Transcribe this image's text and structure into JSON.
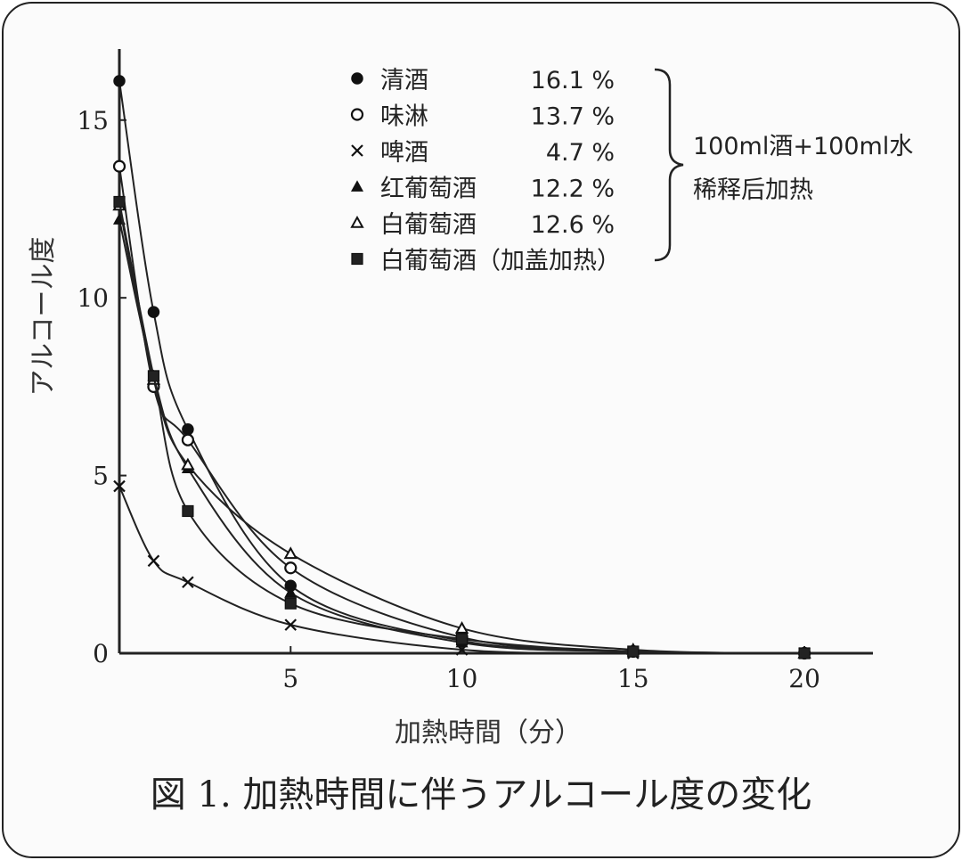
{
  "chart_data": {
    "type": "line",
    "title": "図 1. 加熱時間に伴うアルコール度の変化",
    "xlabel": "加熱時間（分）",
    "ylabel": "アルコール度",
    "xlim": [
      0,
      22
    ],
    "ylim": [
      0,
      17
    ],
    "xticks": [
      5,
      10,
      15,
      20
    ],
    "yticks": [
      0,
      5,
      10,
      15
    ],
    "grid": false,
    "legend_position": "top-right",
    "series": [
      {
        "name": "清酒",
        "pct": "16.1 %",
        "marker": "filled-circle",
        "x": [
          0,
          1,
          2,
          5,
          10,
          15,
          20
        ],
        "y": [
          16.1,
          9.6,
          6.3,
          1.9,
          0.35,
          0.05,
          0
        ]
      },
      {
        "name": "味淋",
        "pct": "13.7 %",
        "marker": "open-circle",
        "x": [
          0,
          1,
          2,
          5,
          10,
          15,
          20
        ],
        "y": [
          13.7,
          7.5,
          6.0,
          2.4,
          0.45,
          0.05,
          0
        ]
      },
      {
        "name": "啤酒",
        "pct": "4.7 %",
        "marker": "cross",
        "x": [
          0,
          1,
          2,
          5,
          10,
          15,
          20
        ],
        "y": [
          4.7,
          2.6,
          2.0,
          0.8,
          0.1,
          0.0,
          0
        ]
      },
      {
        "name": "红葡萄酒",
        "pct": "12.2 %",
        "marker": "filled-triangle",
        "x": [
          0,
          1,
          2,
          5,
          10,
          15,
          20
        ],
        "y": [
          12.2,
          7.8,
          5.2,
          1.7,
          0.3,
          0.05,
          0
        ]
      },
      {
        "name": "白葡萄酒",
        "pct": "12.6 %",
        "marker": "open-triangle",
        "x": [
          0,
          1,
          2,
          5,
          10,
          15,
          20
        ],
        "y": [
          12.6,
          7.7,
          5.3,
          2.8,
          0.7,
          0.1,
          0
        ]
      },
      {
        "name": "白葡萄酒（加盖加热）",
        "pct": "",
        "marker": "filled-square",
        "x": [
          0,
          1,
          2,
          5,
          10,
          15,
          20
        ],
        "y": [
          12.7,
          7.8,
          4.0,
          1.4,
          0.4,
          0.05,
          0
        ]
      }
    ],
    "brace_note_line1": "100ml酒+100ml水",
    "brace_note_line2": "稀释后加热"
  }
}
